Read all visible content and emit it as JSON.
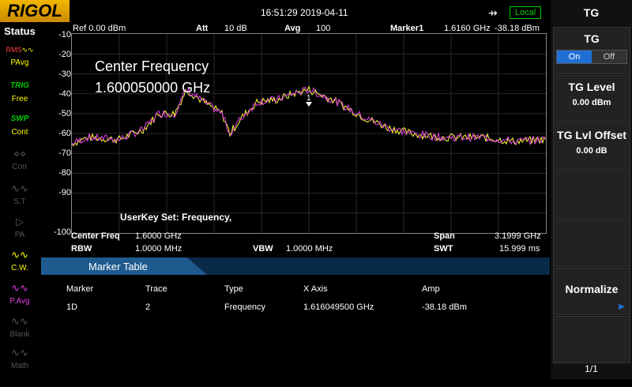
{
  "topbar": {
    "logo": "RIGOL",
    "datetime": "16:51:29 2019-04-11",
    "usb_icon": "usb-icon",
    "local_badge": "Local"
  },
  "status": {
    "title": "Status",
    "items": [
      {
        "icon": "RMS PAvg",
        "label": "PAvg",
        "active": true
      },
      {
        "icon": "TRIG",
        "label": "Free",
        "active": true
      },
      {
        "icon": "SWP",
        "label": "Cont",
        "active": true
      },
      {
        "icon": "corr-icon",
        "label": "Corr",
        "active": false
      },
      {
        "icon": "st-icon",
        "label": "S.T",
        "active": false
      },
      {
        "icon": "pa-icon",
        "label": "PA",
        "active": false
      },
      {
        "icon": "cw-icon",
        "label": "C.W.",
        "active": true
      },
      {
        "icon": "pavg-icon",
        "label": "P.Avg",
        "active": true
      },
      {
        "icon": "blank-icon",
        "label": "Blank",
        "active": false
      },
      {
        "icon": "math-icon",
        "label": "Math",
        "active": false
      }
    ]
  },
  "header": {
    "ref": "Ref  0.00 dBm",
    "att_label": "Att",
    "att_value": "10 dB",
    "avg_label": "Avg",
    "avg_value": "100",
    "marker_label": "Marker1",
    "marker_freq": "1.6160 GHz",
    "marker_amp": "-38.18 dBm"
  },
  "graph": {
    "y_ticks": [
      "-10",
      "-20",
      "-30",
      "-40",
      "-50",
      "-60",
      "-70",
      "-80",
      "-90",
      "-100"
    ],
    "overlay_title": "Center Frequency",
    "overlay_value": "1.600050000 GHz",
    "userkey": "UserKey Set:   Frequency,",
    "marker_num": "1"
  },
  "info": {
    "center_label": "Center Freq",
    "center_value": "1.6000 GHz",
    "span_label": "Span",
    "span_value": "3.1999 GHz",
    "rbw_label": "RBW",
    "rbw_value": "1.0000 MHz",
    "vbw_label": "VBW",
    "vbw_value": "1.0000 MHz",
    "swt_label": "SWT",
    "swt_value": "15.999 ms"
  },
  "marker_table": {
    "title": "Marker Table",
    "headers": [
      "Marker",
      "Trace",
      "Type",
      "X Axis",
      "Amp"
    ],
    "rows": [
      [
        "1D",
        "2",
        "Frequency",
        "1.616049500 GHz",
        "-38.18 dBm"
      ]
    ]
  },
  "panel": {
    "title": "TG",
    "tg": {
      "label": "TG",
      "on": "On",
      "off": "Off"
    },
    "tg_level": {
      "label": "TG Level",
      "value": "0.00 dBm"
    },
    "tg_offset": {
      "label": "TG Lvl Offset",
      "value": "0.00 dB"
    },
    "normalize": "Normalize",
    "page": "1/1"
  },
  "colors": {
    "trace1": "#ffff33",
    "trace2": "#e040e0",
    "accent": "#1f6fd6",
    "local": "#00cc00"
  }
}
